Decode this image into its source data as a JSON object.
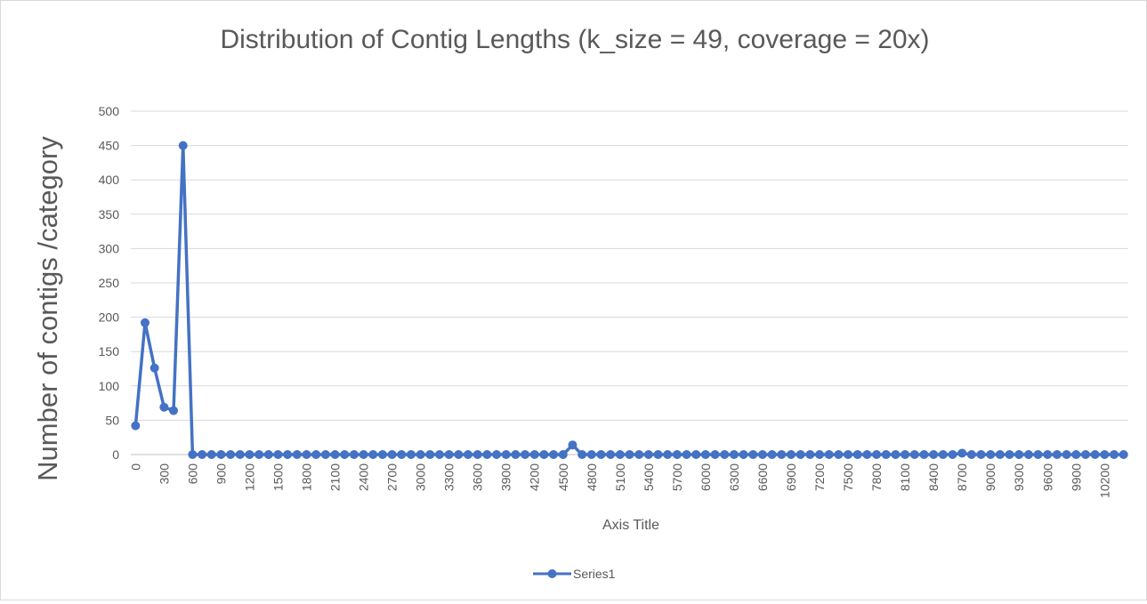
{
  "chart_data": {
    "type": "line",
    "title": "Distribution of Contig Lengths (k_size = 49, coverage = 20x)",
    "xlabel": "Axis Title",
    "ylabel": "Number of contigs /category",
    "ylim": [
      0,
      500
    ],
    "ytick_values": [
      0,
      50,
      100,
      150,
      200,
      250,
      300,
      350,
      400,
      450,
      500
    ],
    "ytick_labels": [
      "0",
      "50",
      "100",
      "150",
      "200",
      "250",
      "300",
      "350",
      "400",
      "450",
      "500"
    ],
    "x": [
      0,
      100,
      200,
      300,
      400,
      500,
      600,
      700,
      800,
      900,
      1000,
      1100,
      1200,
      1300,
      1400,
      1500,
      1600,
      1700,
      1800,
      1900,
      2000,
      2100,
      2200,
      2300,
      2400,
      2500,
      2600,
      2700,
      2800,
      2900,
      3000,
      3100,
      3200,
      3300,
      3400,
      3500,
      3600,
      3700,
      3800,
      3900,
      4000,
      4100,
      4200,
      4300,
      4400,
      4500,
      4600,
      4700,
      4800,
      4900,
      5000,
      5100,
      5200,
      5300,
      5400,
      5500,
      5600,
      5700,
      5800,
      5900,
      6000,
      6100,
      6200,
      6300,
      6400,
      6500,
      6600,
      6700,
      6800,
      6900,
      7000,
      7100,
      7200,
      7300,
      7400,
      7500,
      7600,
      7700,
      7800,
      7900,
      8000,
      8100,
      8200,
      8300,
      8400,
      8500,
      8600,
      8700,
      8800,
      8900,
      9000,
      9100,
      9200,
      9300,
      9400,
      9500,
      9600,
      9700,
      9800,
      9900,
      10000,
      10100,
      10200,
      10300,
      10400
    ],
    "xtick_labels": [
      "0",
      "300",
      "600",
      "900",
      "1200",
      "1500",
      "1800",
      "2100",
      "2400",
      "2700",
      "3000",
      "3300",
      "3600",
      "3900",
      "4200",
      "4500",
      "4800",
      "5100",
      "5400",
      "5700",
      "6000",
      "6300",
      "6600",
      "6900",
      "7200",
      "7500",
      "7800",
      "8100",
      "8400",
      "8700",
      "9000",
      "9300",
      "9600",
      "9900",
      "10200"
    ],
    "xtick_every": 3,
    "grid": true,
    "legend_position": "bottom",
    "series": [
      {
        "name": "Series1",
        "color": "#4472C4",
        "values": [
          42,
          192,
          126,
          69,
          64,
          450,
          0,
          0,
          0,
          0,
          0,
          0,
          0,
          0,
          0,
          0,
          0,
          0,
          0,
          0,
          0,
          0,
          0,
          0,
          0,
          0,
          0,
          0,
          0,
          0,
          0,
          0,
          0,
          0,
          0,
          0,
          0,
          0,
          0,
          0,
          0,
          0,
          0,
          0,
          0,
          0,
          14,
          0,
          0,
          0,
          0,
          0,
          0,
          0,
          0,
          0,
          0,
          0,
          0,
          0,
          0,
          0,
          0,
          0,
          0,
          0,
          0,
          0,
          0,
          0,
          0,
          0,
          0,
          0,
          0,
          0,
          0,
          0,
          0,
          0,
          0,
          0,
          0,
          0,
          0,
          0,
          0,
          2,
          0,
          0,
          0,
          0,
          0,
          0,
          0,
          0,
          0,
          0,
          0,
          0,
          0,
          0,
          0,
          0,
          0
        ]
      }
    ]
  }
}
